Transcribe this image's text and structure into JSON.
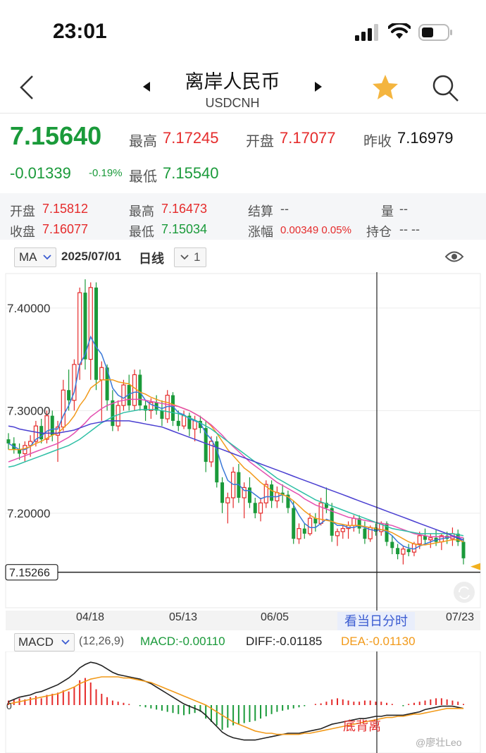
{
  "status_bar": {
    "time": "23:01"
  },
  "nav": {
    "title": "离岸人民币",
    "subtitle": "USDCNH"
  },
  "quote": {
    "price": "7.15640",
    "change": "-0.01339",
    "change_pct": "-0.19%",
    "high_label": "最高",
    "high": "7.17245",
    "open_label": "开盘",
    "open": "7.17077",
    "prev_close_label": "昨收",
    "prev_close": "7.16979",
    "low_label": "最低",
    "low": "7.15540"
  },
  "day_info": {
    "open_label": "开盘",
    "open": "7.15812",
    "high_label": "最高",
    "high": "7.16473",
    "settle_label": "结算",
    "settle": "--",
    "volume_label": "量",
    "volume": "--",
    "close_label": "收盘",
    "close": "7.16077",
    "low_label": "最低",
    "low": "7.15034",
    "range_label": "涨幅",
    "range": "0.00349 0.05%",
    "position_label": "持仓",
    "position": "-- --"
  },
  "chart_toolbar": {
    "indicator": "MA",
    "date": "2025/07/01",
    "period": "日线",
    "count": "1"
  },
  "chart_data": {
    "type": "candlestick",
    "y_ticks": [
      "7.40000",
      "7.30000",
      "7.20000"
    ],
    "current_price_label": "7.15266",
    "x_ticks": [
      "04/18",
      "05/13",
      "06/05",
      "07/23"
    ],
    "ylim": [
      7.105,
      7.435
    ],
    "tick_values": [
      7.4,
      7.3,
      7.2
    ],
    "current_value": 7.15266,
    "candles": [
      [
        7.272,
        7.278,
        7.262,
        7.268
      ],
      [
        7.268,
        7.274,
        7.258,
        7.262
      ],
      [
        7.262,
        7.268,
        7.252,
        7.258
      ],
      [
        7.258,
        7.27,
        7.25,
        7.266
      ],
      [
        7.266,
        7.276,
        7.255,
        7.27
      ],
      [
        7.27,
        7.29,
        7.265,
        7.285
      ],
      [
        7.285,
        7.292,
        7.268,
        7.272
      ],
      [
        7.272,
        7.3,
        7.268,
        7.295
      ],
      [
        7.295,
        7.3,
        7.27,
        7.276
      ],
      [
        7.276,
        7.29,
        7.25,
        7.284
      ],
      [
        7.284,
        7.33,
        7.28,
        7.32
      ],
      [
        7.32,
        7.34,
        7.3,
        7.31
      ],
      [
        7.31,
        7.35,
        7.3,
        7.345
      ],
      [
        7.345,
        7.42,
        7.33,
        7.415
      ],
      [
        7.415,
        7.428,
        7.34,
        7.35
      ],
      [
        7.35,
        7.425,
        7.33,
        7.42
      ],
      [
        7.42,
        7.425,
        7.32,
        7.33
      ],
      [
        7.33,
        7.348,
        7.29,
        7.342
      ],
      [
        7.342,
        7.345,
        7.3,
        7.31
      ],
      [
        7.31,
        7.32,
        7.28,
        7.285
      ],
      [
        7.285,
        7.31,
        7.28,
        7.305
      ],
      [
        7.305,
        7.33,
        7.3,
        7.325
      ],
      [
        7.325,
        7.335,
        7.3,
        7.305
      ],
      [
        7.305,
        7.34,
        7.3,
        7.335
      ],
      [
        7.335,
        7.34,
        7.3,
        7.305
      ],
      [
        7.305,
        7.31,
        7.29,
        7.3
      ],
      [
        7.3,
        7.312,
        7.292,
        7.308
      ],
      [
        7.308,
        7.315,
        7.296,
        7.3
      ],
      [
        7.3,
        7.31,
        7.285,
        7.292
      ],
      [
        7.292,
        7.32,
        7.288,
        7.315
      ],
      [
        7.315,
        7.318,
        7.285,
        7.29
      ],
      [
        7.29,
        7.3,
        7.28,
        7.285
      ],
      [
        7.285,
        7.3,
        7.282,
        7.295
      ],
      [
        7.295,
        7.298,
        7.275,
        7.282
      ],
      [
        7.282,
        7.295,
        7.27,
        7.29
      ],
      [
        7.29,
        7.295,
        7.278,
        7.283
      ],
      [
        7.283,
        7.29,
        7.24,
        7.25
      ],
      [
        7.25,
        7.275,
        7.245,
        7.27
      ],
      [
        7.27,
        7.275,
        7.225,
        7.23
      ],
      [
        7.23,
        7.235,
        7.2,
        7.21
      ],
      [
        7.21,
        7.22,
        7.19,
        7.215
      ],
      [
        7.215,
        7.245,
        7.205,
        7.24
      ],
      [
        7.24,
        7.248,
        7.21,
        7.215
      ],
      [
        7.215,
        7.23,
        7.195,
        7.225
      ],
      [
        7.225,
        7.235,
        7.205,
        7.21
      ],
      [
        7.21,
        7.215,
        7.195,
        7.2
      ],
      [
        7.2,
        7.215,
        7.192,
        7.21
      ],
      [
        7.21,
        7.232,
        7.205,
        7.228
      ],
      [
        7.228,
        7.232,
        7.205,
        7.212
      ],
      [
        7.212,
        7.226,
        7.205,
        7.22
      ],
      [
        7.22,
        7.228,
        7.21,
        7.218
      ],
      [
        7.218,
        7.222,
        7.2,
        7.205
      ],
      [
        7.205,
        7.212,
        7.17,
        7.175
      ],
      [
        7.175,
        7.19,
        7.17,
        7.185
      ],
      [
        7.185,
        7.19,
        7.175,
        7.18
      ],
      [
        7.18,
        7.2,
        7.178,
        7.195
      ],
      [
        7.195,
        7.2,
        7.182,
        7.19
      ],
      [
        7.19,
        7.215,
        7.188,
        7.21
      ],
      [
        7.21,
        7.225,
        7.2,
        7.205
      ],
      [
        7.205,
        7.21,
        7.172,
        7.178
      ],
      [
        7.178,
        7.185,
        7.168,
        7.182
      ],
      [
        7.182,
        7.188,
        7.175,
        7.185
      ],
      [
        7.185,
        7.192,
        7.175,
        7.188
      ],
      [
        7.188,
        7.198,
        7.182,
        7.195
      ],
      [
        7.195,
        7.198,
        7.18,
        7.185
      ],
      [
        7.185,
        7.192,
        7.17,
        7.175
      ],
      [
        7.175,
        7.188,
        7.172,
        7.186
      ],
      [
        7.186,
        7.19,
        7.178,
        7.182
      ],
      [
        7.182,
        7.192,
        7.178,
        7.19
      ],
      [
        7.19,
        7.192,
        7.168,
        7.172
      ],
      [
        7.172,
        7.178,
        7.16,
        7.166
      ],
      [
        7.166,
        7.17,
        7.155,
        7.16
      ],
      [
        7.16,
        7.168,
        7.15,
        7.165
      ],
      [
        7.165,
        7.17,
        7.158,
        7.162
      ],
      [
        7.162,
        7.172,
        7.158,
        7.17
      ],
      [
        7.17,
        7.182,
        7.165,
        7.178
      ],
      [
        7.178,
        7.185,
        7.17,
        7.174
      ],
      [
        7.174,
        7.18,
        7.166,
        7.176
      ],
      [
        7.176,
        7.184,
        7.168,
        7.172
      ],
      [
        7.172,
        7.18,
        7.164,
        7.178
      ],
      [
        7.178,
        7.182,
        7.17,
        7.175
      ],
      [
        7.175,
        7.186,
        7.168,
        7.18
      ],
      [
        7.18,
        7.184,
        7.168,
        7.172
      ],
      [
        7.172,
        7.176,
        7.15,
        7.156
      ]
    ],
    "ma_series": [
      {
        "color": "#3a78d8",
        "values": [
          7.268,
          7.265,
          7.262,
          7.262,
          7.265,
          7.272,
          7.275,
          7.28,
          7.282,
          7.282,
          7.295,
          7.305,
          7.318,
          7.345,
          7.355,
          7.372,
          7.362,
          7.355,
          7.34,
          7.322,
          7.315,
          7.312,
          7.316,
          7.318,
          7.318,
          7.31,
          7.306,
          7.304,
          7.302,
          7.304,
          7.304,
          7.298,
          7.296,
          7.292,
          7.29,
          7.288,
          7.278,
          7.272,
          7.262,
          7.245,
          7.232,
          7.228,
          7.228,
          7.222,
          7.222,
          7.218,
          7.214,
          7.216,
          7.216,
          7.216,
          7.218,
          7.216,
          7.208,
          7.198,
          7.19,
          7.186,
          7.186,
          7.19,
          7.194,
          7.192,
          7.188,
          7.188,
          7.186,
          7.186,
          7.188,
          7.186,
          7.184,
          7.183,
          7.184,
          7.182,
          7.178,
          7.172,
          7.168,
          7.166,
          7.165,
          7.168,
          7.17,
          7.172,
          7.174,
          7.175,
          7.176,
          7.177,
          7.176,
          7.172
        ]
      },
      {
        "color": "#f29a1a",
        "values": [
          7.262,
          7.262,
          7.262,
          7.263,
          7.265,
          7.268,
          7.27,
          7.273,
          7.276,
          7.278,
          7.283,
          7.288,
          7.295,
          7.305,
          7.312,
          7.322,
          7.326,
          7.33,
          7.33,
          7.33,
          7.328,
          7.327,
          7.326,
          7.322,
          7.318,
          7.316,
          7.313,
          7.311,
          7.309,
          7.308,
          7.306,
          7.304,
          7.302,
          7.3,
          7.297,
          7.294,
          7.29,
          7.285,
          7.278,
          7.27,
          7.262,
          7.256,
          7.25,
          7.244,
          7.24,
          7.235,
          7.23,
          7.226,
          7.222,
          7.22,
          7.218,
          7.216,
          7.212,
          7.207,
          7.202,
          7.198,
          7.195,
          7.194,
          7.193,
          7.192,
          7.19,
          7.189,
          7.188,
          7.188,
          7.188,
          7.187,
          7.186,
          7.185,
          7.184,
          7.183,
          7.181,
          7.178,
          7.175,
          7.172,
          7.17,
          7.169,
          7.169,
          7.17,
          7.171,
          7.172,
          7.173,
          7.174,
          7.174,
          7.172
        ]
      },
      {
        "color": "#e44fb0",
        "values": [
          7.25,
          7.252,
          7.254,
          7.256,
          7.258,
          7.26,
          7.262,
          7.264,
          7.266,
          7.268,
          7.271,
          7.274,
          7.278,
          7.283,
          7.288,
          7.294,
          7.298,
          7.302,
          7.305,
          7.307,
          7.309,
          7.31,
          7.311,
          7.311,
          7.311,
          7.31,
          7.309,
          7.308,
          7.307,
          7.306,
          7.305,
          7.304,
          7.302,
          7.3,
          7.297,
          7.294,
          7.29,
          7.286,
          7.281,
          7.276,
          7.27,
          7.265,
          7.26,
          7.255,
          7.25,
          7.246,
          7.242,
          7.238,
          7.234,
          7.23,
          7.227,
          7.224,
          7.221,
          7.218,
          7.214,
          7.211,
          7.208,
          7.206,
          7.204,
          7.202,
          7.2,
          7.198,
          7.196,
          7.195,
          7.194,
          7.193,
          7.192,
          7.191,
          7.19,
          7.189,
          7.188,
          7.186,
          7.184,
          7.182,
          7.18,
          7.179,
          7.178,
          7.177,
          7.177,
          7.177,
          7.177,
          7.177,
          7.177,
          7.176
        ]
      },
      {
        "color": "#2ebfa5",
        "values": [
          7.245,
          7.246,
          7.248,
          7.25,
          7.252,
          7.254,
          7.256,
          7.258,
          7.26,
          7.262,
          7.264,
          7.266,
          7.269,
          7.272,
          7.276,
          7.28,
          7.284,
          7.288,
          7.291,
          7.294,
          7.296,
          7.298,
          7.299,
          7.3,
          7.301,
          7.301,
          7.301,
          7.301,
          7.3,
          7.299,
          7.298,
          7.297,
          7.295,
          7.293,
          7.291,
          7.288,
          7.285,
          7.282,
          7.278,
          7.274,
          7.27,
          7.266,
          7.262,
          7.258,
          7.254,
          7.25,
          7.246,
          7.242,
          7.238,
          7.234,
          7.231,
          7.228,
          7.225,
          7.222,
          7.219,
          7.216,
          7.213,
          7.211,
          7.209,
          7.207,
          7.205,
          7.203,
          7.201,
          7.199,
          7.197,
          7.195,
          7.193,
          7.191,
          7.189,
          7.187,
          7.185,
          7.184,
          7.183,
          7.182,
          7.181,
          7.18,
          7.18,
          7.18,
          7.18,
          7.18,
          7.18,
          7.18,
          7.179,
          7.178
        ]
      },
      {
        "color": "#4a3fd1",
        "values": [
          7.285,
          7.284,
          7.282,
          7.281,
          7.28,
          7.279,
          7.278,
          7.278,
          7.278,
          7.278,
          7.279,
          7.28,
          7.281,
          7.283,
          7.285,
          7.287,
          7.288,
          7.289,
          7.29,
          7.29,
          7.29,
          7.29,
          7.29,
          7.289,
          7.288,
          7.287,
          7.286,
          7.285,
          7.284,
          7.282,
          7.28,
          7.278,
          7.276,
          7.274,
          7.272,
          7.27,
          7.268,
          7.266,
          7.264,
          7.262,
          7.26,
          7.258,
          7.256,
          7.254,
          7.252,
          7.25,
          7.248,
          7.246,
          7.244,
          7.242,
          7.24,
          7.238,
          7.236,
          7.234,
          7.232,
          7.23,
          7.228,
          7.226,
          7.224,
          7.222,
          7.22,
          7.218,
          7.216,
          7.214,
          7.212,
          7.21,
          7.208,
          7.206,
          7.204,
          7.202,
          7.2,
          7.198,
          7.196,
          7.194,
          7.192,
          7.19,
          7.188,
          7.186,
          7.184,
          7.182,
          7.18,
          7.178,
          7.176,
          7.174
        ]
      }
    ],
    "macd": {
      "label": "MACD",
      "params": "(12,26,9)",
      "macd_label": "MACD:",
      "macd_value": "-0.00110",
      "diff_label": "DIFF:",
      "diff_value": "-0.01185",
      "dea_label": "DEA:",
      "dea_value": "-0.01130",
      "zero_label": "0",
      "divergence_label": "底背离",
      "hist": [
        0.4,
        0.5,
        0.6,
        0.5,
        0.7,
        0.8,
        0.6,
        0.9,
        1.0,
        1.1,
        1.3,
        1.2,
        1.6,
        2.2,
        2.4,
        2.0,
        1.4,
        1.0,
        0.7,
        0.4,
        0.3,
        0.2,
        0.1,
        0.0,
        -0.1,
        -0.2,
        -0.3,
        -0.4,
        -0.5,
        -0.6,
        -0.7,
        -0.8,
        -0.9,
        -0.8,
        -0.7,
        -0.6,
        -1.2,
        -1.5,
        -1.8,
        -2.2,
        -2.0,
        -1.8,
        -1.7,
        -1.6,
        -1.5,
        -1.4,
        -1.2,
        -1.0,
        -0.8,
        -0.6,
        -0.5,
        -0.4,
        -0.3,
        -0.2,
        -0.1,
        0.0,
        0.1,
        0.15,
        0.3,
        0.5,
        0.6,
        0.5,
        0.4,
        0.3,
        0.3,
        0.4,
        0.4,
        0.3,
        0.3,
        0.2,
        0.1,
        0.0,
        -0.1,
        0.1,
        0.2,
        0.3,
        0.4,
        0.5,
        0.6,
        0.6,
        0.5,
        0.4,
        0.3,
        0.1
      ],
      "diff": [
        0.3,
        0.5,
        0.7,
        0.8,
        0.9,
        1.1,
        1.2,
        1.4,
        1.6,
        1.8,
        2.1,
        2.4,
        2.8,
        3.3,
        3.6,
        3.8,
        3.7,
        3.5,
        3.2,
        2.9,
        2.7,
        2.6,
        2.5,
        2.4,
        2.3,
        2.1,
        1.9,
        1.6,
        1.3,
        1.0,
        0.7,
        0.4,
        0.1,
        -0.1,
        -0.3,
        -0.5,
        -0.9,
        -1.4,
        -1.9,
        -2.4,
        -2.7,
        -2.9,
        -3.0,
        -3.1,
        -3.1,
        -3.1,
        -3.0,
        -2.9,
        -2.8,
        -2.7,
        -2.6,
        -2.5,
        -2.5,
        -2.5,
        -2.4,
        -2.3,
        -2.2,
        -2.1,
        -1.9,
        -1.7,
        -1.6,
        -1.5,
        -1.4,
        -1.3,
        -1.2,
        -1.2,
        -1.1,
        -1.0,
        -1.0,
        -0.9,
        -0.9,
        -0.9,
        -0.9,
        -0.8,
        -0.7,
        -0.6,
        -0.4,
        -0.3,
        -0.2,
        -0.1,
        -0.1,
        -0.1,
        -0.2,
        -0.3
      ],
      "dea": [
        0.1,
        0.2,
        0.3,
        0.4,
        0.5,
        0.6,
        0.7,
        0.8,
        0.9,
        1.0,
        1.2,
        1.4,
        1.6,
        1.9,
        2.1,
        2.3,
        2.4,
        2.5,
        2.5,
        2.5,
        2.5,
        2.4,
        2.4,
        2.3,
        2.2,
        2.1,
        2.0,
        1.8,
        1.6,
        1.4,
        1.2,
        1.0,
        0.8,
        0.6,
        0.4,
        0.2,
        0.0,
        -0.3,
        -0.6,
        -0.9,
        -1.2,
        -1.5,
        -1.7,
        -1.9,
        -2.1,
        -2.3,
        -2.4,
        -2.5,
        -2.5,
        -2.6,
        -2.6,
        -2.6,
        -2.6,
        -2.6,
        -2.5,
        -2.5,
        -2.4,
        -2.3,
        -2.2,
        -2.1,
        -2.0,
        -1.9,
        -1.8,
        -1.7,
        -1.6,
        -1.5,
        -1.4,
        -1.3,
        -1.2,
        -1.1,
        -1.1,
        -1.0,
        -1.0,
        -0.9,
        -0.8,
        -0.8,
        -0.7,
        -0.6,
        -0.5,
        -0.4,
        -0.3,
        -0.3,
        -0.3,
        -0.3
      ]
    }
  },
  "crosshair_tooltip": "看当日分时",
  "watermark": "@廖壮Leo"
}
